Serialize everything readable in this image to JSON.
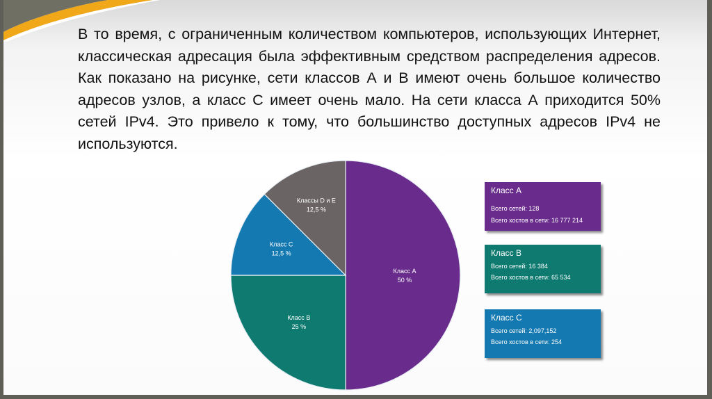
{
  "paragraph": "В то время, с ограниченным количеством компьютеров, использующих Интернет, классическая адресация была эффективным средством распределения адресов. Как показано на рисунке, сети классов А и В имеют очень большое количество адресов узлов, а класс С имеет очень мало. На сети класса А приходится 50% сетей IPv4. Это привело к тому, что большинство доступных адресов IPv4 не используются.",
  "chart_data": {
    "type": "pie",
    "slices": [
      {
        "label": "Класс A",
        "value_text": "50 %",
        "value": 50,
        "color": "#6a2c8c"
      },
      {
        "label": "Класс B",
        "value_text": "25 %",
        "value": 25,
        "color": "#0e7a70"
      },
      {
        "label": "Класс C",
        "value_text": "12,5 %",
        "value": 12.5,
        "color": "#1479b0"
      },
      {
        "label": "Классы D и E",
        "value_text": "12,5 %",
        "value": 12.5,
        "color": "#6a6464"
      }
    ]
  },
  "legend_boxes": [
    {
      "title": "Класс A",
      "networks": "Всего сетей: 128",
      "hosts": "Всего хостов в сети: 16 777 214",
      "color": "#6a2c8c"
    },
    {
      "title": "Класс B",
      "networks": "Всего сетей: 16 384",
      "hosts": "Всего хостов в сети: 65 534",
      "color": "#0e7a70"
    },
    {
      "title": "Класс C",
      "networks": "Всего сетей: 2,097,152",
      "hosts": "Всего хостов в сети: 254",
      "color": "#1479b0"
    }
  ]
}
